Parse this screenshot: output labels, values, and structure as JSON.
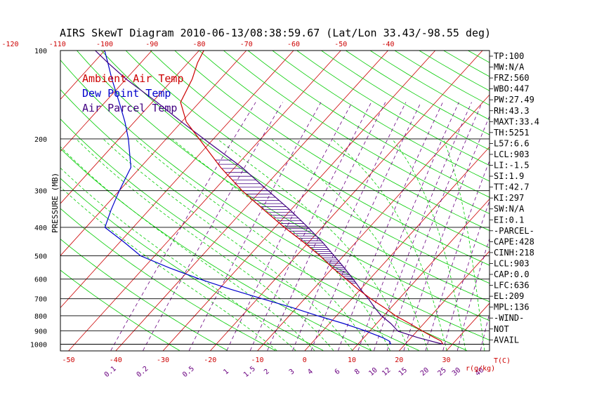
{
  "chart_data": {
    "type": "line",
    "title": "AIRS SkewT Diagram 2010-06-13/08:38:59.67 (Lat/Lon 33.43/-98.55 deg)",
    "ylabel": "PRESSURE (MB)",
    "xlabel": "T(C)",
    "mixing_ratio_unit": "r(g/kg)",
    "y_scale": "log",
    "ylim": [
      1050,
      100
    ],
    "xlim_bottom": [
      -50,
      40
    ],
    "pressure_ticks": [
      "100",
      "200",
      "300",
      "400",
      "500",
      "600",
      "700",
      "800",
      "900",
      "1000"
    ],
    "bottom_temp_ticks": [
      "-50",
      "-40",
      "-30",
      "-20",
      "-10",
      "0",
      "10",
      "20",
      "30"
    ],
    "top_temp_ticks": [
      "-120",
      "-110",
      "-100",
      "-90",
      "-80",
      "-70",
      "-60",
      "-50",
      "-40"
    ],
    "mixing_ratio_labels": [
      "0.1",
      "0.2",
      "0.5",
      "1",
      "1.5",
      "2",
      "3",
      "4",
      "6",
      "8",
      "10",
      "12",
      "15",
      "20",
      "25",
      "30",
      "40"
    ],
    "legend": [
      "Ambient Air Temp",
      "Dew Point Temp",
      "Air Parcel Temp"
    ],
    "legend_position": "top-left",
    "series": [
      {
        "name": "Ambient Air Temp",
        "color": "#cc0000",
        "pressure": [
          1000,
          975,
          950,
          925,
          900,
          850,
          800,
          750,
          700,
          650,
          600,
          550,
          500,
          450,
          400,
          350,
          300,
          250,
          200,
          175,
          150,
          125,
          110,
          100
        ],
        "temperature": [
          28,
          27,
          25,
          23,
          21,
          17,
          12.5,
          8.5,
          4,
          -0.5,
          -5,
          -10,
          -15,
          -21,
          -28,
          -35.5,
          -44,
          -53,
          -63,
          -69,
          -74,
          -76,
          -78,
          -79
        ]
      },
      {
        "name": "Dew Point Temp",
        "color": "#0000cc",
        "pressure": [
          1000,
          975,
          950,
          925,
          900,
          850,
          800,
          750,
          700,
          650,
          600,
          550,
          500,
          450,
          400,
          350,
          300,
          250,
          200,
          175,
          150,
          125,
          110,
          100
        ],
        "temperature": [
          17,
          16,
          14,
          11.5,
          9,
          3,
          -4,
          -11,
          -19,
          -27.5,
          -36,
          -44.5,
          -53,
          -59,
          -66,
          -68,
          -70,
          -72,
          -78,
          -82,
          -87,
          -93,
          -97,
          -100
        ]
      },
      {
        "name": "Air Parcel Temp",
        "color": "#400080",
        "pressure": [
          1000,
          950,
          903,
          850,
          800,
          750,
          700,
          650,
          600,
          550,
          500,
          450,
          400,
          350,
          300,
          250,
          200,
          175,
          150,
          125,
          110,
          100
        ],
        "temperature": [
          28,
          21.5,
          16,
          13,
          9.5,
          6.5,
          3.5,
          0,
          -3.5,
          -7.5,
          -12,
          -17,
          -23,
          -30,
          -38.5,
          -48.5,
          -62,
          -70,
          -79,
          -90,
          -97,
          -102
        ]
      }
    ],
    "indices": [
      "TP:100",
      "MW:N/A",
      "FRZ:560",
      "WBO:447",
      "PW:27.49",
      "RH:43.3",
      "MAXT:33.4",
      "TH:5251",
      "L57:6.6",
      "LCL:903",
      "LI:-1.5",
      "SI:1.9",
      "TT:42.7",
      "KI:297",
      "SW:N/A",
      "EI:0.1",
      "-PARCEL-",
      "CAPE:428",
      "CINH:218",
      "LCL:903",
      "CAP:0.0",
      "LFC:636",
      "EL:209",
      "MPL:136",
      "-WIND-",
      "NOT",
      "AVAIL"
    ]
  },
  "colors": {
    "ambient": "#cc0000",
    "dewpoint": "#0000cc",
    "parcel": "#400080",
    "isotherm": "#cc0000",
    "dry_adiabat": "#00cc00",
    "moist_adiabat": "#00cc00",
    "mixing_ratio": "#6a0080"
  }
}
